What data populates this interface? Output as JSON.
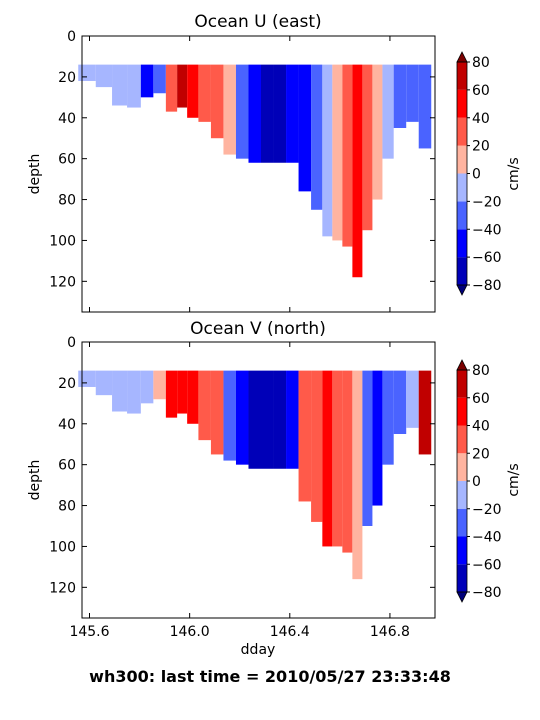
{
  "suptitle": "wh300: last time = 2010/05/27 23:33:48",
  "colors": {
    "levels": [
      -80,
      -60,
      -40,
      -20,
      0,
      20,
      40,
      60,
      80
    ],
    "fills": [
      "#0000b8",
      "#0000ff",
      "#4a63ff",
      "#a6b6ff",
      "#ffb4a0",
      "#ff5a4a",
      "#ff0000",
      "#c00000"
    ],
    "under": "#00007a",
    "over": "#7a0000",
    "no_data": "#ffffff"
  },
  "chart_data": [
    {
      "type": "heatmap",
      "title": "Ocean U (east)",
      "xlabel": "",
      "ylabel": "depth",
      "xlim": [
        145.57,
        146.98
      ],
      "ylim": [
        135,
        0
      ],
      "xticks": [],
      "yticks": [
        0,
        20,
        40,
        60,
        80,
        100,
        120
      ],
      "colorbar": {
        "label": "cm/s",
        "ticks": [
          80,
          60,
          40,
          20,
          0,
          -20,
          -40,
          -60,
          -80
        ]
      },
      "profiles": [
        {
          "x": 145.59,
          "maxdepth": 22,
          "u": -15
        },
        {
          "x": 145.66,
          "maxdepth": 25,
          "u": -10
        },
        {
          "x": 145.72,
          "maxdepth": 34,
          "u": -15
        },
        {
          "x": 145.78,
          "maxdepth": 35,
          "u": -18
        },
        {
          "x": 145.83,
          "maxdepth": 30,
          "u": -50
        },
        {
          "x": 145.88,
          "maxdepth": 28,
          "u": -35
        },
        {
          "x": 145.93,
          "maxdepth": 37,
          "u": 35
        },
        {
          "x": 145.97,
          "maxdepth": 35,
          "u": 65
        },
        {
          "x": 146.01,
          "maxdepth": 40,
          "u": 45
        },
        {
          "x": 146.06,
          "maxdepth": 42,
          "u": 30
        },
        {
          "x": 146.11,
          "maxdepth": 50,
          "u": 25
        },
        {
          "x": 146.16,
          "maxdepth": 58,
          "u": 12
        },
        {
          "x": 146.21,
          "maxdepth": 60,
          "u": -25
        },
        {
          "x": 146.26,
          "maxdepth": 62,
          "u": -60
        },
        {
          "x": 146.31,
          "maxdepth": 62,
          "u": -70
        },
        {
          "x": 146.36,
          "maxdepth": 62,
          "u": -65
        },
        {
          "x": 146.41,
          "maxdepth": 62,
          "u": -55
        },
        {
          "x": 146.46,
          "maxdepth": 76,
          "u": -45
        },
        {
          "x": 146.51,
          "maxdepth": 85,
          "u": -35
        },
        {
          "x": 146.55,
          "maxdepth": 98,
          "u": -15
        },
        {
          "x": 146.59,
          "maxdepth": 100,
          "u": 15
        },
        {
          "x": 146.63,
          "maxdepth": 103,
          "u": 35
        },
        {
          "x": 146.67,
          "maxdepth": 118,
          "u": 55
        },
        {
          "x": 146.71,
          "maxdepth": 95,
          "u": 30
        },
        {
          "x": 146.75,
          "maxdepth": 80,
          "u": 15
        },
        {
          "x": 146.79,
          "maxdepth": 60,
          "u": -15
        },
        {
          "x": 146.84,
          "maxdepth": 45,
          "u": -30
        },
        {
          "x": 146.89,
          "maxdepth": 42,
          "u": -25
        },
        {
          "x": 146.94,
          "maxdepth": 55,
          "u": -40
        }
      ]
    },
    {
      "type": "heatmap",
      "title": "Ocean V (north)",
      "xlabel": "dday",
      "ylabel": "depth",
      "xlim": [
        145.57,
        146.98
      ],
      "ylim": [
        135,
        0
      ],
      "xticks": [
        145.6,
        146.0,
        146.4,
        146.8
      ],
      "yticks": [
        0,
        20,
        40,
        60,
        80,
        100,
        120
      ],
      "colorbar": {
        "label": "cm/s",
        "ticks": [
          80,
          60,
          40,
          20,
          0,
          -20,
          -40,
          -60,
          -80
        ]
      },
      "profiles": [
        {
          "x": 145.59,
          "maxdepth": 22,
          "v": -12
        },
        {
          "x": 145.66,
          "maxdepth": 26,
          "v": -10
        },
        {
          "x": 145.72,
          "maxdepth": 34,
          "v": -15
        },
        {
          "x": 145.78,
          "maxdepth": 35,
          "v": -18
        },
        {
          "x": 145.83,
          "maxdepth": 30,
          "v": -12
        },
        {
          "x": 145.88,
          "maxdepth": 28,
          "v": 15
        },
        {
          "x": 145.93,
          "maxdepth": 37,
          "v": 45
        },
        {
          "x": 145.97,
          "maxdepth": 35,
          "v": 55
        },
        {
          "x": 146.01,
          "maxdepth": 40,
          "v": 45
        },
        {
          "x": 146.06,
          "maxdepth": 48,
          "v": 30
        },
        {
          "x": 146.11,
          "maxdepth": 55,
          "v": 20
        },
        {
          "x": 146.16,
          "maxdepth": 58,
          "v": -35
        },
        {
          "x": 146.21,
          "maxdepth": 60,
          "v": -60
        },
        {
          "x": 146.26,
          "maxdepth": 62,
          "v": -75
        },
        {
          "x": 146.31,
          "maxdepth": 62,
          "v": -75
        },
        {
          "x": 146.36,
          "maxdepth": 62,
          "v": -65
        },
        {
          "x": 146.41,
          "maxdepth": 62,
          "v": -45
        },
        {
          "x": 146.46,
          "maxdepth": 78,
          "v": 20
        },
        {
          "x": 146.51,
          "maxdepth": 88,
          "v": 35
        },
        {
          "x": 146.55,
          "maxdepth": 100,
          "v": 45
        },
        {
          "x": 146.59,
          "maxdepth": 100,
          "v": 30
        },
        {
          "x": 146.63,
          "maxdepth": 103,
          "v": 25
        },
        {
          "x": 146.67,
          "maxdepth": 116,
          "v": 15
        },
        {
          "x": 146.71,
          "maxdepth": 90,
          "v": -25
        },
        {
          "x": 146.75,
          "maxdepth": 80,
          "v": -55
        },
        {
          "x": 146.79,
          "maxdepth": 60,
          "v": -40
        },
        {
          "x": 146.84,
          "maxdepth": 45,
          "v": -25
        },
        {
          "x": 146.89,
          "maxdepth": 42,
          "v": -10
        },
        {
          "x": 146.94,
          "maxdepth": 55,
          "v": 60
        }
      ]
    }
  ]
}
